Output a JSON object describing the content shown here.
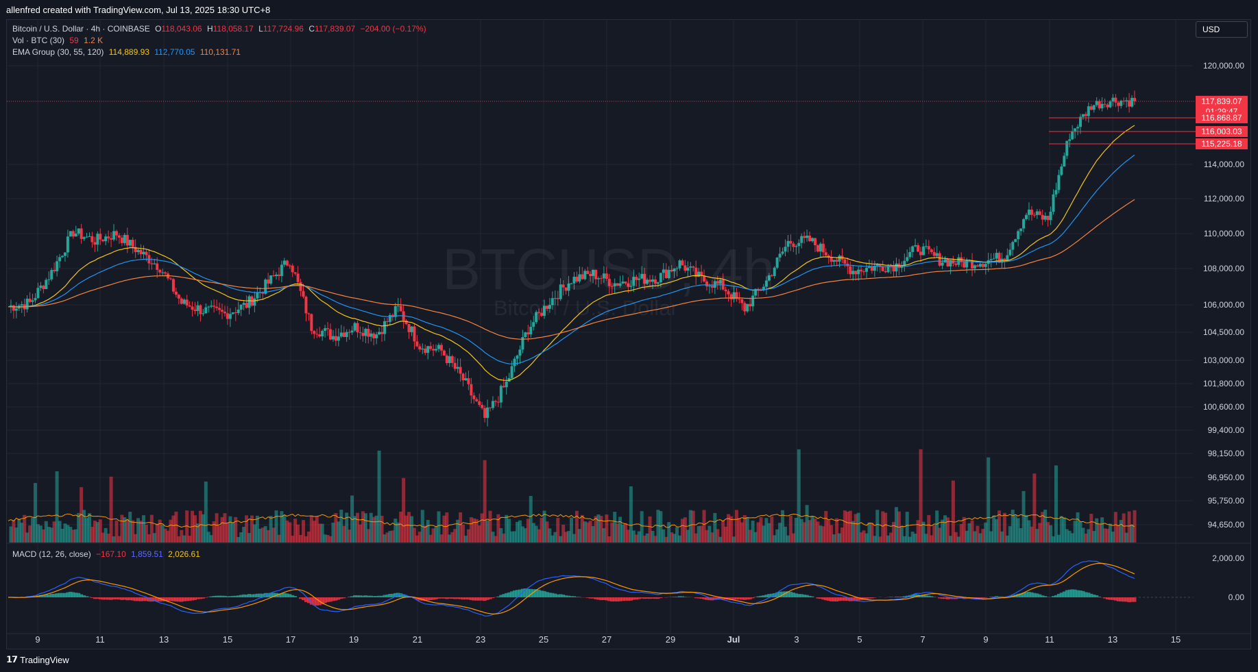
{
  "header": {
    "caption": "allenfred created with TradingView.com, Jul 13, 2025 18:30 UTC+8"
  },
  "legend": {
    "symbol": "Bitcoin / U.S. Dollar · 4h · COINBASE",
    "open_label": "O",
    "open": "118,043.06",
    "high_label": "H",
    "high": "118,058.17",
    "low_label": "L",
    "low": "117,724.96",
    "close_label": "C",
    "close": "117,839.07",
    "change": "−204.00 (−0.17%)",
    "vol_label": "Vol · BTC (30)",
    "vol_1": "59",
    "vol_2": "1.2 K",
    "ema_label": "EMA Group (30, 55, 120)",
    "ema_30": "114,889.93",
    "ema_55": "112,770.05",
    "ema_120": "110,131.71"
  },
  "macd_legend": {
    "label": "MACD (12, 26, close)",
    "hist": "−167.10",
    "macd": "1,859.51",
    "signal": "2,026.61"
  },
  "currency": "USD",
  "watermark": {
    "title": "BTCUSD, 4h",
    "subtitle": "Bitcoin / U.S. Dollar"
  },
  "footer": {
    "logo_glyph": "𝟭𝟳",
    "brand": "TradingView"
  },
  "colors": {
    "up": "#26a69a",
    "down": "#f23645",
    "ema30": "#f5c518",
    "ema55": "#2196f3",
    "ema120": "#f7843f",
    "macd_line": "#2962ff",
    "signal_line": "#ff9800",
    "vol_ma": "#ff9800"
  },
  "chart_data": {
    "type": "candlestick",
    "x_ticks": [
      "9",
      "11",
      "13",
      "15",
      "17",
      "19",
      "21",
      "23",
      "25",
      "27",
      "29",
      "Jul",
      "3",
      "5",
      "7",
      "9",
      "11",
      "13",
      "15"
    ],
    "y_ticks": [
      "120,000.00",
      "114,000.00",
      "112,000.00",
      "110,000.00",
      "108,000.00",
      "106,000.00",
      "104,500.00",
      "103,000.00",
      "101,800.00",
      "100,600.00",
      "99,400.00",
      "98,150.00",
      "96,950.00",
      "95,750.00",
      "94,650.00"
    ],
    "y_tick_values": [
      120000,
      114000,
      112000,
      110000,
      108000,
      106000,
      104500,
      103000,
      101800,
      100600,
      99400,
      98150,
      96950,
      95750,
      94650
    ],
    "price_labels": [
      {
        "text": "117,839.07",
        "value": 117839.07
      },
      {
        "text": "01:29:47",
        "value": null
      },
      {
        "text": "116,868.87",
        "value": 116868.87
      },
      {
        "text": "116,003.03",
        "value": 116003.03
      },
      {
        "text": "115,225.18",
        "value": 115225.18
      }
    ],
    "last_price": 117839.07,
    "ohlc_anchors": [
      {
        "x": 0,
        "c": 105900
      },
      {
        "x": 2,
        "c": 106100
      },
      {
        "x": 4,
        "c": 107800
      },
      {
        "x": 6,
        "c": 110100
      },
      {
        "x": 8,
        "c": 109600
      },
      {
        "x": 10,
        "c": 110000
      },
      {
        "x": 12,
        "c": 109000
      },
      {
        "x": 14,
        "c": 108100
      },
      {
        "x": 16,
        "c": 106100
      },
      {
        "x": 18,
        "c": 105700
      },
      {
        "x": 20,
        "c": 105500
      },
      {
        "x": 22,
        "c": 106000
      },
      {
        "x": 24,
        "c": 107200
      },
      {
        "x": 26,
        "c": 108500
      },
      {
        "x": 28,
        "c": 104800
      },
      {
        "x": 30,
        "c": 104300
      },
      {
        "x": 32,
        "c": 104800
      },
      {
        "x": 34,
        "c": 104400
      },
      {
        "x": 36,
        "c": 105800
      },
      {
        "x": 38,
        "c": 103800
      },
      {
        "x": 40,
        "c": 103500
      },
      {
        "x": 42,
        "c": 102000
      },
      {
        "x": 44,
        "c": 100000
      },
      {
        "x": 46,
        "c": 101800
      },
      {
        "x": 48,
        "c": 104700
      },
      {
        "x": 50,
        "c": 106200
      },
      {
        "x": 52,
        "c": 107400
      },
      {
        "x": 54,
        "c": 107700
      },
      {
        "x": 56,
        "c": 107200
      },
      {
        "x": 58,
        "c": 107400
      },
      {
        "x": 60,
        "c": 107500
      },
      {
        "x": 62,
        "c": 108300
      },
      {
        "x": 64,
        "c": 107400
      },
      {
        "x": 66,
        "c": 107000
      },
      {
        "x": 68,
        "c": 105800
      },
      {
        "x": 70,
        "c": 107300
      },
      {
        "x": 72,
        "c": 109500
      },
      {
        "x": 74,
        "c": 109600
      },
      {
        "x": 76,
        "c": 108700
      },
      {
        "x": 78,
        "c": 107900
      },
      {
        "x": 80,
        "c": 108100
      },
      {
        "x": 82,
        "c": 108200
      },
      {
        "x": 84,
        "c": 109200
      },
      {
        "x": 86,
        "c": 108500
      },
      {
        "x": 88,
        "c": 108300
      },
      {
        "x": 90,
        "c": 108400
      },
      {
        "x": 92,
        "c": 108700
      },
      {
        "x": 94,
        "c": 111200
      },
      {
        "x": 96,
        "c": 110800
      },
      {
        "x": 98,
        "c": 115800
      },
      {
        "x": 100,
        "c": 117600
      },
      {
        "x": 102,
        "c": 117900
      },
      {
        "x": 104,
        "c": 117839
      }
    ],
    "macd_y_ticks": [
      "2,000.00",
      "0.00"
    ],
    "macd_y_tick_values": [
      2000,
      0
    ]
  }
}
